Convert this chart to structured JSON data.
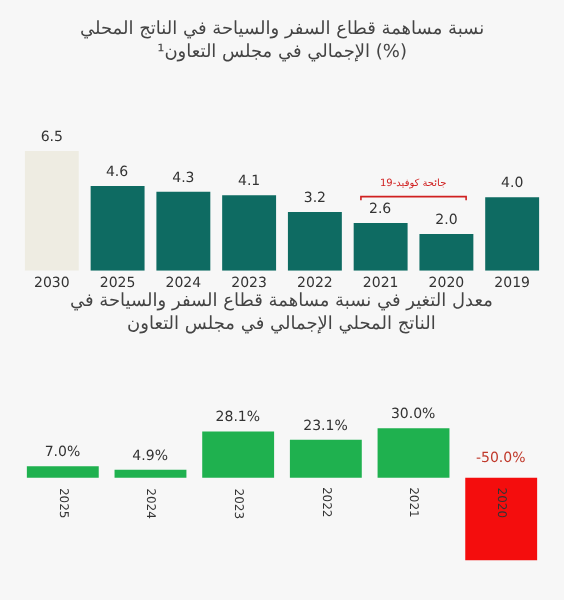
{
  "chart_data": [
    {
      "type": "bar",
      "title": "نسبة مساهمة قطاع السفر والسياحة في الناتج المحلي الإجمالي في مجلس التعاون¹ (%)",
      "categories": [
        "2030",
        "2025",
        "2024",
        "2023",
        "2022",
        "2021",
        "2020",
        "2019"
      ],
      "values": [
        6.5,
        4.6,
        4.3,
        4.1,
        3.2,
        2.6,
        2.0,
        4.0
      ],
      "colors": [
        "#eeece2",
        "#0e6b62",
        "#0e6b62",
        "#0e6b62",
        "#0e6b62",
        "#0e6b62",
        "#0e6b62",
        "#0e6b62"
      ],
      "value_labels": [
        "6.5",
        "4.6",
        "4.3",
        "4.1",
        "3.2",
        "2.6",
        "2.0",
        "4.0"
      ],
      "annotations": [
        "جائحة كوفيد-19"
      ]
    },
    {
      "type": "bar",
      "title": "معدل التغير في نسبة مساهمة قطاع السفر والسياحة في الناتج المحلي الإجمالي في مجلس التعاون",
      "categories": [
        "2025",
        "2024",
        "2023",
        "2022",
        "2021",
        "2020"
      ],
      "values": [
        7.0,
        4.9,
        28.1,
        23.1,
        30.0,
        -50.0
      ],
      "colors": [
        "#1fb14f",
        "#1fb14f",
        "#1fb14f",
        "#1fb14f",
        "#1fb14f",
        "#f40d0d"
      ],
      "value_labels": [
        "7.0%",
        "4.9%",
        "28.1%",
        "23.1%",
        "30.0%",
        "-50.0%"
      ]
    }
  ]
}
